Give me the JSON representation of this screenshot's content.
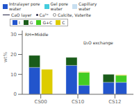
{
  "chart_data": {
    "type": "bar",
    "categories": [
      "CS00",
      "CS10",
      "CS12"
    ],
    "series": [
      {
        "name": "I",
        "color": "#2255cc",
        "values": [
          [
            13.5,
            0.0
          ],
          [
            14.5,
            4.5
          ],
          [
            6.0,
            6.0
          ]
        ]
      },
      {
        "name": "G",
        "color": "#1a5c1a",
        "values": [
          [
            6.0,
            0.0
          ],
          [
            4.0,
            0.0
          ],
          [
            4.0,
            0.0
          ]
        ]
      },
      {
        "name": "G+C",
        "color": "#44cc22",
        "values": [
          [
            0.0,
            0.0
          ],
          [
            0.0,
            6.5
          ],
          [
            0.0,
            3.5
          ]
        ]
      },
      {
        "name": "C",
        "color": "#ddcc00",
        "values": [
          [
            0.0,
            12.5
          ],
          [
            0.0,
            0.3
          ],
          [
            0.0,
            0.3
          ]
        ]
      }
    ],
    "stacked": true,
    "ylim": [
      0,
      32
    ],
    "yticks": [
      0,
      10,
      20,
      30
    ],
    "ylabel": "wt%",
    "grid": false,
    "annotations": [
      "RH=Middle",
      "D₂O exchange"
    ],
    "key_rows": [
      [
        {
          "label": "Intralayer pore\nwater",
          "color": "#2255cc",
          "marker": "square"
        },
        {
          "label": "Gel pore\nwater",
          "color": "#44ccdd",
          "marker": "square"
        },
        {
          "label": "Capillary\nwater",
          "color": "#c8dff0",
          "marker": "square"
        }
      ],
      [
        {
          "label": "CaO layer",
          "color": "#222244",
          "marker": "line"
        },
        {
          "label": "Ca²⁺",
          "color": "#222244",
          "marker": "dot"
        },
        {
          "label": "Calcite, Vaterite",
          "color": "#888888",
          "marker": "circle"
        }
      ]
    ]
  }
}
